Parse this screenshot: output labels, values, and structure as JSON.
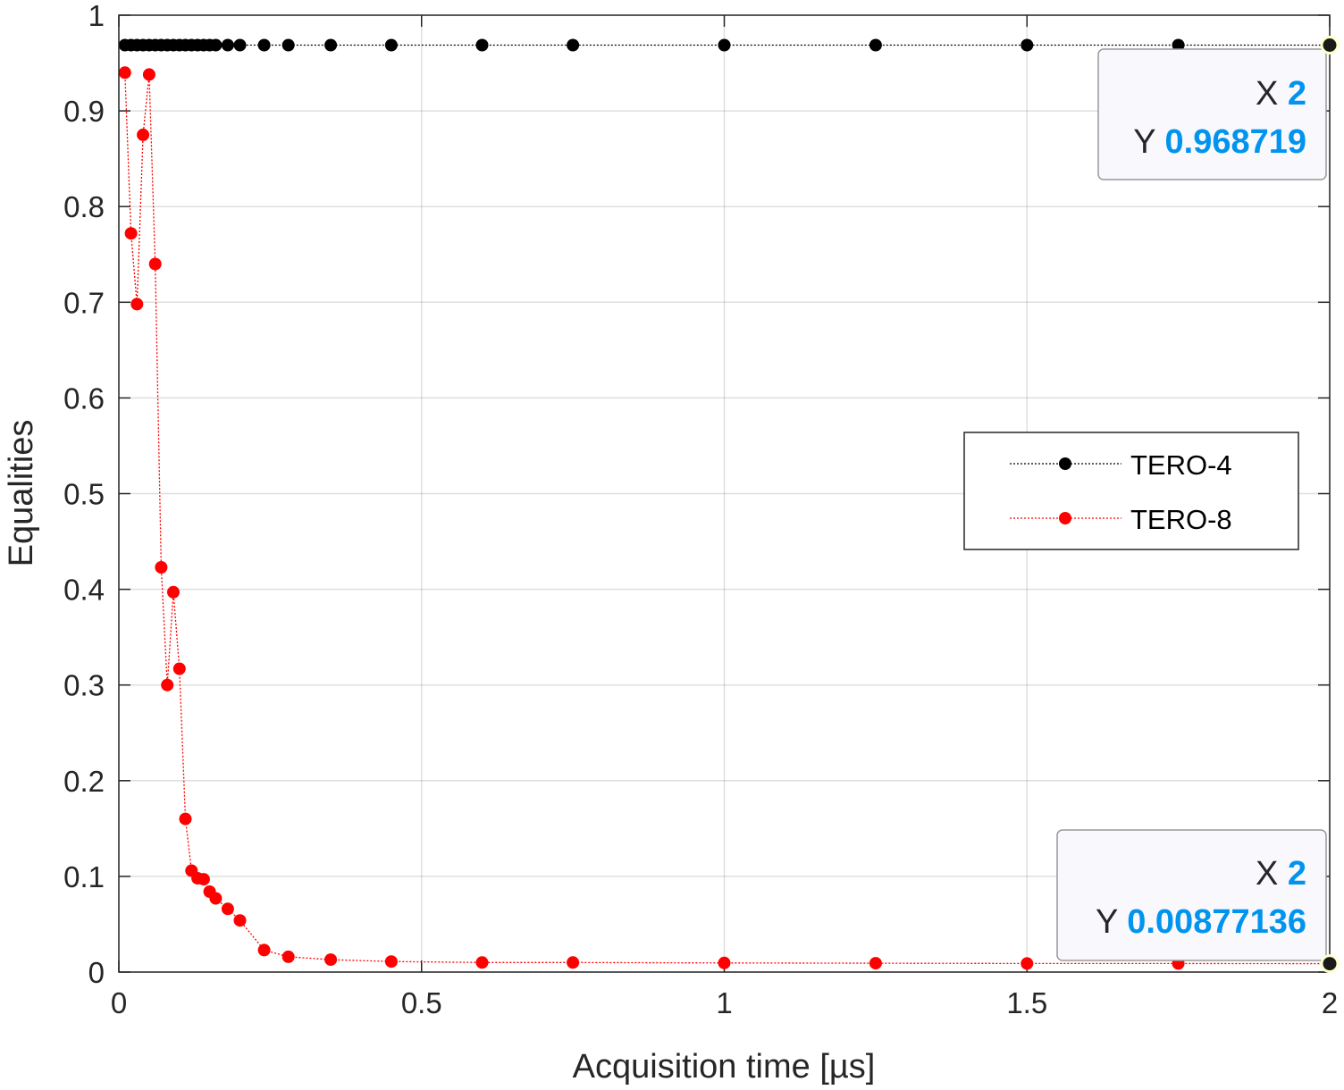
{
  "chart_data": {
    "type": "line",
    "xlabel": "Acquisition time [µs]",
    "ylabel": "Equalities",
    "xlim": [
      0,
      2
    ],
    "ylim": [
      0,
      1
    ],
    "x_ticks": [
      "0",
      "0.5",
      "1",
      "1.5",
      "2"
    ],
    "y_ticks": [
      "0",
      "0.1",
      "0.2",
      "0.3",
      "0.4",
      "0.5",
      "0.6",
      "0.7",
      "0.8",
      "0.9",
      "1"
    ],
    "grid": true,
    "legend_position": "right",
    "series": [
      {
        "name": "TERO-4",
        "color": "#000000",
        "x": [
          0.01,
          0.02,
          0.03,
          0.04,
          0.05,
          0.06,
          0.07,
          0.08,
          0.09,
          0.1,
          0.11,
          0.12,
          0.13,
          0.14,
          0.15,
          0.16,
          0.18,
          0.2,
          0.24,
          0.28,
          0.35,
          0.45,
          0.6,
          0.75,
          1.0,
          1.25,
          1.5,
          1.75,
          2.0
        ],
        "y": [
          0.9687,
          0.9687,
          0.9687,
          0.9687,
          0.9687,
          0.9687,
          0.9687,
          0.9687,
          0.9687,
          0.9687,
          0.9687,
          0.9687,
          0.9687,
          0.9687,
          0.9687,
          0.9687,
          0.9687,
          0.9687,
          0.9687,
          0.9687,
          0.9687,
          0.9687,
          0.9687,
          0.9687,
          0.9687,
          0.9687,
          0.9687,
          0.9687,
          0.968719
        ]
      },
      {
        "name": "TERO-8",
        "color": "#ff0000",
        "x": [
          0.01,
          0.02,
          0.03,
          0.04,
          0.05,
          0.06,
          0.07,
          0.08,
          0.09,
          0.1,
          0.11,
          0.12,
          0.13,
          0.14,
          0.15,
          0.16,
          0.18,
          0.2,
          0.24,
          0.28,
          0.35,
          0.45,
          0.6,
          0.75,
          1.0,
          1.25,
          1.5,
          1.75,
          2.0
        ],
        "y": [
          0.94,
          0.772,
          0.698,
          0.875,
          0.938,
          0.74,
          0.423,
          0.3,
          0.397,
          0.317,
          0.16,
          0.106,
          0.098,
          0.097,
          0.084,
          0.077,
          0.066,
          0.054,
          0.023,
          0.016,
          0.013,
          0.011,
          0.01,
          0.01,
          0.0095,
          0.0092,
          0.009,
          0.009,
          0.00877136
        ]
      }
    ],
    "datatips": [
      {
        "x_label": "X",
        "x_value": "2",
        "y_label": "Y",
        "y_value": "0.968719",
        "series": "TERO-4"
      },
      {
        "x_label": "X",
        "x_value": "2",
        "y_label": "Y",
        "y_value": "0.00877136",
        "series": "TERO-8"
      }
    ]
  }
}
